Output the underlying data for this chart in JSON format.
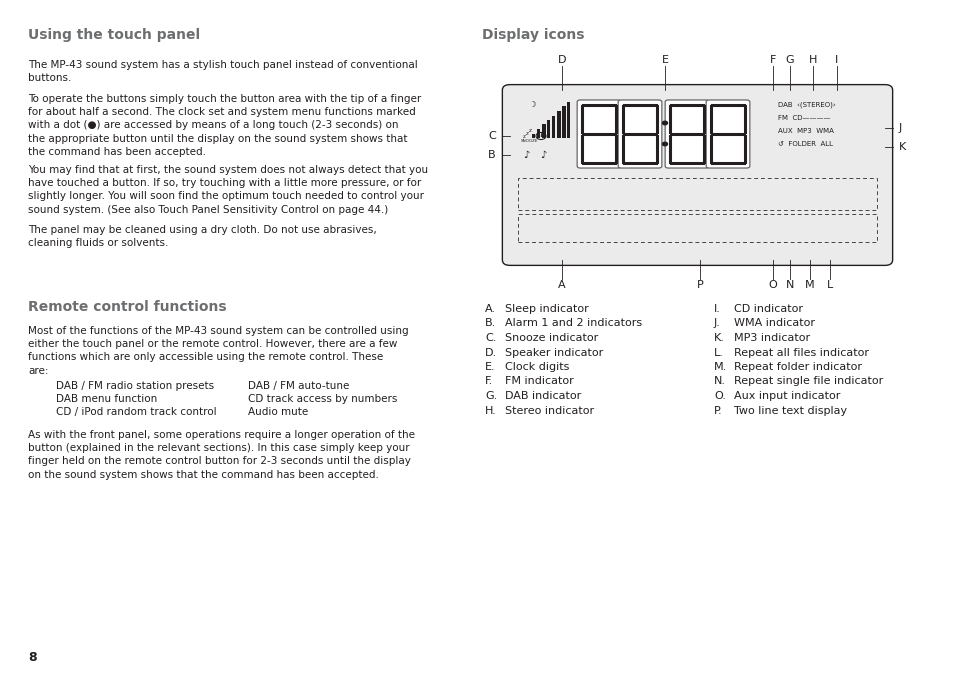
{
  "bg_color": "#ffffff",
  "text_color": "#231f20",
  "heading_color": "#6d6e70",
  "title_left": "Using the touch panel",
  "title_right": "Display icons",
  "para1": "The MP-43 sound system has a stylish touch panel instead of conventional\nbuttons.",
  "para2": "To operate the buttons simply touch the button area with the tip of a finger\nfor about half a second. The clock set and system menu functions marked\nwith a dot (●) are accessed by means of a long touch (2-3 seconds) on\nthe appropriate button until the display on the sound system shows that\nthe command has been accepted.",
  "para3": "You may find that at first, the sound system does not always detect that you\nhave touched a button. If so, try touching with a little more pressure, or for\nslightly longer. You will soon find the optimum touch needed to control your\nsound system. (See also Touch Panel Sensitivity Control on page 44.)",
  "para4": "The panel may be cleaned using a dry cloth. Do not use abrasives,\ncleaning fluids or solvents.",
  "title_remote": "Remote control functions",
  "para5": "Most of the functions of the MP-43 sound system can be controlled using\neither the touch panel or the remote control. However, there are a few\nfunctions which are only accessible using the remote control. These\nare:",
  "list_col1": [
    "DAB / FM radio station presets",
    "DAB menu function",
    "CD / iPod random track control"
  ],
  "list_col2": [
    "DAB / FM auto-tune",
    "CD track access by numbers",
    "Audio mute"
  ],
  "para6": "As with the front panel, some operations require a longer operation of the\nbutton (explained in the relevant sections). In this case simply keep your\nfinger held on the remote control button for 2-3 seconds until the display\non the sound system shows that the command has been accepted.",
  "page_number": "8",
  "legend_left": [
    [
      "A.",
      "Sleep indicator"
    ],
    [
      "B.",
      "Alarm 1 and 2 indicators"
    ],
    [
      "C.",
      "Snooze indicator"
    ],
    [
      "D.",
      "Speaker indicator"
    ],
    [
      "E.",
      "Clock digits"
    ],
    [
      "F.",
      "FM indicator"
    ],
    [
      "G.",
      "DAB indicator"
    ],
    [
      "H.",
      "Stereo indicator"
    ]
  ],
  "legend_right": [
    [
      "I.",
      "CD indicator"
    ],
    [
      "J.",
      "WMA indicator"
    ],
    [
      "K.",
      "MP3 indicator"
    ],
    [
      "L.",
      "Repeat all files indicator"
    ],
    [
      "M.",
      "Repeat folder indicator"
    ],
    [
      "N.",
      "Repeat single file indicator"
    ],
    [
      "O.",
      "Aux input indicator"
    ],
    [
      "P.",
      "Two line text display"
    ]
  ]
}
